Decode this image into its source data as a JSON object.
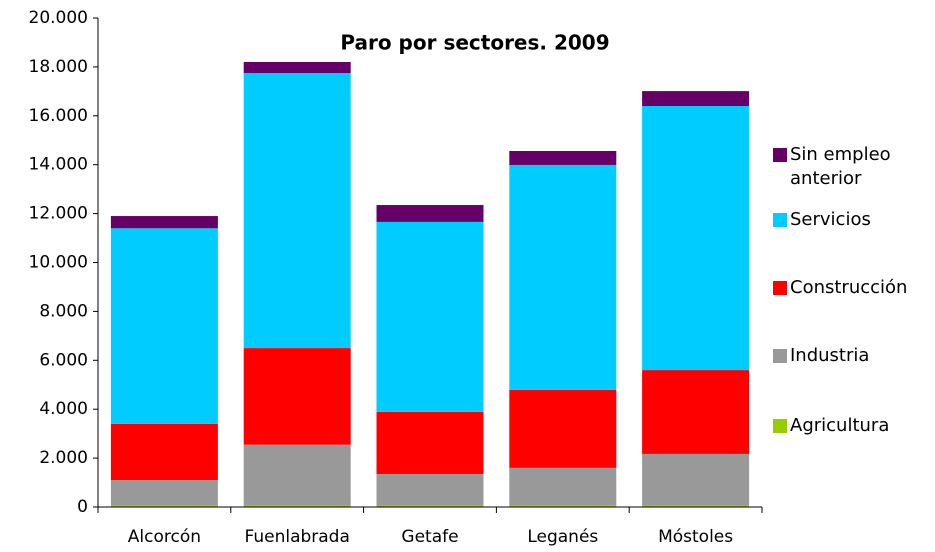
{
  "chart_data": {
    "type": "stacked_bar",
    "title": "Paro por sectores. 2009",
    "categories": [
      "Alcorcón",
      "Fuenlabrada",
      "Getafe",
      "Leganés",
      "Móstoles"
    ],
    "series": [
      {
        "name": "Agricultura",
        "color": "#99cc00",
        "values": [
          50,
          50,
          50,
          50,
          50
        ]
      },
      {
        "name": "Industria",
        "color": "#999999",
        "values": [
          1050,
          2500,
          1300,
          1550,
          2120
        ]
      },
      {
        "name": "Construcción",
        "color": "#ff0000",
        "values": [
          2300,
          3950,
          2540,
          3190,
          3430
        ]
      },
      {
        "name": "Servicios",
        "color": "#00ccff",
        "values": [
          8000,
          11250,
          7770,
          9200,
          10800
        ]
      },
      {
        "name": "Sin empleo anterior",
        "color": "#660066",
        "values": [
          500,
          450,
          690,
          570,
          610
        ]
      }
    ],
    "ylim": [
      0,
      20000
    ],
    "yticks": [
      0,
      {
        "value": 2000,
        "label": "2.000"
      },
      {
        "value": 4000,
        "label": "4.000"
      },
      {
        "value": 6000,
        "label": "6.000"
      },
      {
        "value": 8000,
        "label": "8.000"
      },
      {
        "value": 10000,
        "label": "10.000"
      },
      {
        "value": 12000,
        "label": "12.000"
      },
      {
        "value": 14000,
        "label": "14.000"
      },
      {
        "value": 16000,
        "label": "16.000"
      },
      {
        "value": 18000,
        "label": "18.000"
      },
      {
        "value": 20000,
        "label": "20.000"
      }
    ],
    "grid": false,
    "legend": "right"
  }
}
